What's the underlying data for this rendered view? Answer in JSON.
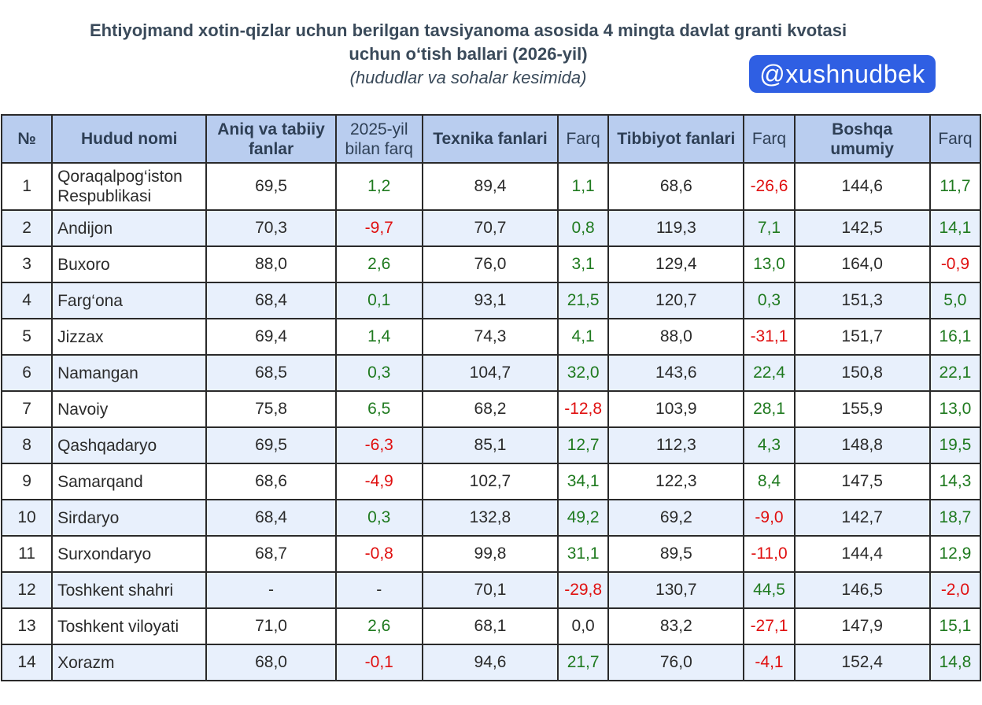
{
  "header": {
    "title_line1": "Ehtiyojmand xotin-qizlar uchun berilgan tavsiyanoma asosida 4 mingta davlat granti kvotasi",
    "title_line2": "uchun o‘tish ballari (2026-yil)",
    "subtitle": "(hududlar va sohalar kesimida)",
    "badge": "@xushnudbek"
  },
  "colors": {
    "header_bg": "#b9cdef",
    "row_alt_bg": "#e8f0fc",
    "positive": "#1f7a1f",
    "negative": "#e01010",
    "badge_bg": "#2f5fe3"
  },
  "table": {
    "columns": [
      "№",
      "Hudud nomi",
      "Aniq va tabiiy fanlar",
      "2025-yil bilan farq",
      "Texnika fanlari",
      "Farq",
      "Tibbiyot fanlari",
      "Farq",
      "Boshqa umumiy",
      "Farq"
    ],
    "rows": [
      {
        "n": "1",
        "name": "Qoraqalpog‘iston Respublikasi",
        "c1": "69,5",
        "d1": "1,2",
        "c2": "89,4",
        "d2": "1,1",
        "c3": "68,6",
        "d3": "-26,6",
        "c4": "144,6",
        "d4": "11,7"
      },
      {
        "n": "2",
        "name": "Andijon",
        "c1": "70,3",
        "d1": "-9,7",
        "c2": "70,7",
        "d2": "0,8",
        "c3": "119,3",
        "d3": "7,1",
        "c4": "142,5",
        "d4": "14,1"
      },
      {
        "n": "3",
        "name": "Buxoro",
        "c1": "88,0",
        "d1": "2,6",
        "c2": "76,0",
        "d2": "3,1",
        "c3": "129,4",
        "d3": "13,0",
        "c4": "164,0",
        "d4": "-0,9"
      },
      {
        "n": "4",
        "name": "Farg‘ona",
        "c1": "68,4",
        "d1": "0,1",
        "c2": "93,1",
        "d2": "21,5",
        "c3": "120,7",
        "d3": "0,3",
        "c4": "151,3",
        "d4": "5,0"
      },
      {
        "n": "5",
        "name": "Jizzax",
        "c1": "69,4",
        "d1": "1,4",
        "c2": "74,3",
        "d2": "4,1",
        "c3": "88,0",
        "d3": "-31,1",
        "c4": "151,7",
        "d4": "16,1"
      },
      {
        "n": "6",
        "name": "Namangan",
        "c1": "68,5",
        "d1": "0,3",
        "c2": "104,7",
        "d2": "32,0",
        "c3": "143,6",
        "d3": "22,4",
        "c4": "150,8",
        "d4": "22,1"
      },
      {
        "n": "7",
        "name": "Navoiy",
        "c1": "75,8",
        "d1": "6,5",
        "c2": "68,2",
        "d2": "-12,8",
        "c3": "103,9",
        "d3": "28,1",
        "c4": "155,9",
        "d4": "13,0"
      },
      {
        "n": "8",
        "name": "Qashqadaryo",
        "c1": "69,5",
        "d1": "-6,3",
        "c2": "85,1",
        "d2": "12,7",
        "c3": "112,3",
        "d3": "4,3",
        "c4": "148,8",
        "d4": "19,5"
      },
      {
        "n": "9",
        "name": "Samarqand",
        "c1": "68,6",
        "d1": "-4,9",
        "c2": "102,7",
        "d2": "34,1",
        "c3": "122,3",
        "d3": "8,4",
        "c4": "147,5",
        "d4": "14,3"
      },
      {
        "n": "10",
        "name": "Sirdaryo",
        "c1": "68,4",
        "d1": "0,3",
        "c2": "132,8",
        "d2": "49,2",
        "c3": "69,2",
        "d3": "-9,0",
        "c4": "142,7",
        "d4": "18,7"
      },
      {
        "n": "11",
        "name": "Surxondaryo",
        "c1": "68,7",
        "d1": "-0,8",
        "c2": "99,8",
        "d2": "31,1",
        "c3": "89,5",
        "d3": "-11,0",
        "c4": "144,4",
        "d4": "12,9"
      },
      {
        "n": "12",
        "name": "Toshkent shahri",
        "c1": "-",
        "d1": "-",
        "c2": "70,1",
        "d2": "-29,8",
        "c3": "130,7",
        "d3": "44,5",
        "c4": "146,5",
        "d4": "-2,0"
      },
      {
        "n": "13",
        "name": "Toshkent viloyati",
        "c1": "71,0",
        "d1": "2,6",
        "c2": "68,1",
        "d2": "0,0",
        "c3": "83,2",
        "d3": "-27,1",
        "c4": "147,9",
        "d4": "15,1"
      },
      {
        "n": "14",
        "name": "Xorazm",
        "c1": "68,0",
        "d1": "-0,1",
        "c2": "94,6",
        "d2": "21,7",
        "c3": "76,0",
        "d3": "-4,1",
        "c4": "152,4",
        "d4": "14,8"
      }
    ]
  }
}
